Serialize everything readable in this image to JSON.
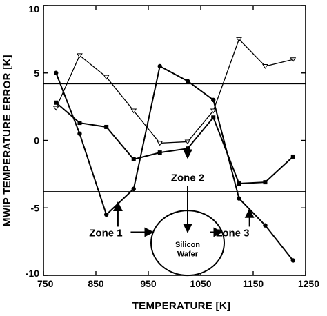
{
  "chart_data": {
    "type": "line",
    "title": "",
    "xlabel": "TEMPERATURE [K]",
    "ylabel": "MWIP TEMPERATURE ERROR [K]",
    "xlim": [
      750,
      1250
    ],
    "ylim": [
      -10,
      10
    ],
    "xticks": [
      750,
      850,
      950,
      1050,
      1150,
      1250
    ],
    "xtick_labels": [
      "750",
      "850",
      "950",
      "1050",
      "1150",
      "1250"
    ],
    "yticks": [
      10,
      5,
      0,
      -5,
      -10
    ],
    "ytick_labels": [
      "10",
      "5",
      "0",
      "-5",
      "-10"
    ],
    "grid": false,
    "legend": "none",
    "reference_lines": [
      4.2,
      -3.8
    ],
    "series": [
      {
        "marker": "open-triangle-down",
        "x": [
          774,
          819,
          870,
          922,
          972,
          1025,
          1074,
          1123,
          1173,
          1226
        ],
        "y": [
          2.4,
          6.3,
          4.7,
          2.2,
          -0.2,
          -0.1,
          2.2,
          7.5,
          5.5,
          6.0
        ]
      },
      {
        "marker": "filled-square",
        "x": [
          774,
          819,
          870,
          922,
          972,
          1025,
          1074,
          1123,
          1173,
          1226
        ],
        "y": [
          2.8,
          1.3,
          1.0,
          -1.4,
          -0.9,
          -0.6,
          1.7,
          -3.2,
          -3.1,
          -1.2
        ]
      },
      {
        "marker": "filled-circle",
        "x": [
          774,
          819,
          870,
          922,
          972,
          1025,
          1074,
          1123,
          1173,
          1226
        ],
        "y": [
          5.0,
          0.5,
          -5.5,
          -3.6,
          5.5,
          4.4,
          3.0,
          -4.3,
          -6.3,
          -8.9
        ]
      }
    ],
    "annotations": [
      {
        "text": "Zone 1",
        "x": 869,
        "y": -6.8,
        "arrow_to": [
          892,
          -4.6
        ]
      },
      {
        "text": "Zone 2",
        "x": 1025,
        "y": -2.7,
        "arrow_from": [
          1025,
          -1.3
        ],
        "arrow_to": [
          1025,
          -6.8
        ]
      },
      {
        "text": "Zone 3",
        "x": 1111,
        "y": -6.8,
        "arrow_to": [
          1143,
          -5.1
        ]
      },
      {
        "text": "Silicon",
        "x": 1025,
        "y": -7.7
      },
      {
        "text": "Wafer",
        "x": 1025,
        "y": -8.4
      }
    ]
  }
}
